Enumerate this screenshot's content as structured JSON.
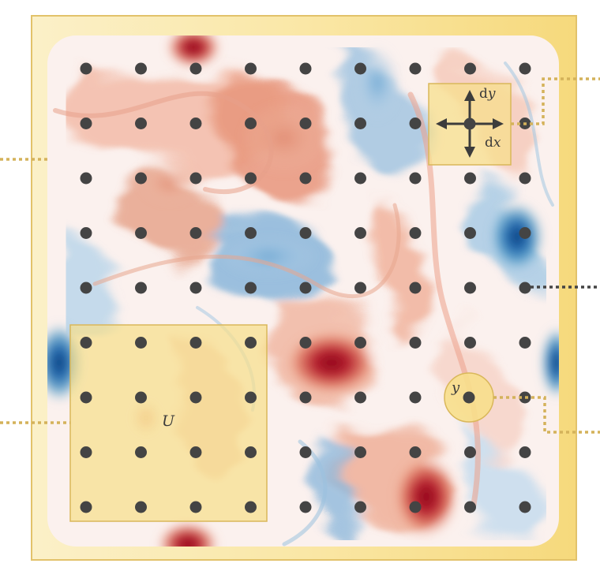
{
  "labels": {
    "derivative_y": "d",
    "derivative_y_var": "y",
    "derivative_x": "d",
    "derivative_x_var": "x",
    "sensor_symbol": "y",
    "region_symbol": "U"
  },
  "colors": {
    "frame_outer": "#e8c46a",
    "frame_fill": "#f8e7a8",
    "grid_dot": "#444444",
    "highlight_fill": "#f6dc86",
    "highlight_stroke": "#d9b75a",
    "connector_gold": "#d4b25a",
    "connector_dark": "#444444",
    "vort_positive": "#b2182b",
    "vort_negative": "#2166ac"
  },
  "grid": {
    "rows": 9,
    "cols": 9
  }
}
